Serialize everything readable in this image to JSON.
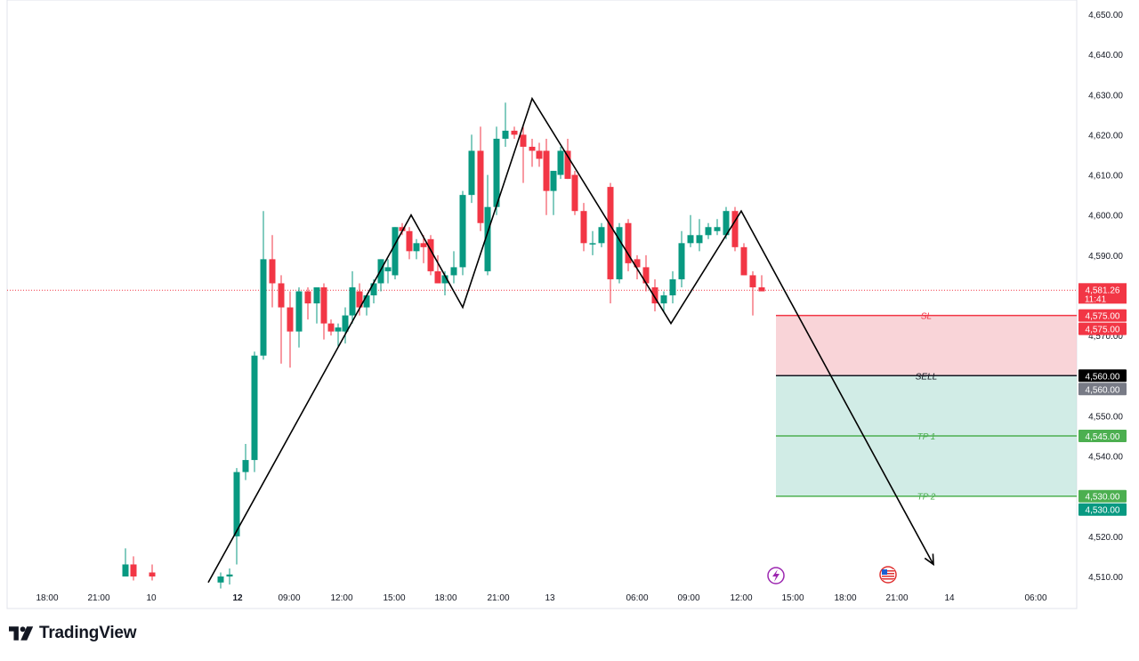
{
  "chart_data": {
    "type": "candlestick",
    "platform": "TradingView",
    "colors": {
      "up": "#089981",
      "down": "#F23645",
      "price_line": "#F23645",
      "stop_zone": "#F7C5CB",
      "target_zone": "#B9E2D8",
      "tp": "#4CAF50",
      "sell": "#000000"
    },
    "y_axis": {
      "range": [
        4508.0,
        4652.0
      ],
      "ticks": [
        "4,650.00",
        "4,640.00",
        "4,630.00",
        "4,620.00",
        "4,610.00",
        "4,600.00",
        "4,590.00",
        "4,580.00",
        "4,570.00",
        "4,560.00",
        "4,550.00",
        "4,540.00",
        "4,530.00",
        "4,520.00",
        "4,510.00"
      ],
      "tick_values": [
        4650,
        4640,
        4630,
        4620,
        4610,
        4600,
        4590,
        4580,
        4570,
        4560,
        4550,
        4540,
        4530,
        4520,
        4510
      ]
    },
    "x_axis": {
      "labels": [
        "18:00",
        "21:00",
        "10",
        "12",
        "09:00",
        "12:00",
        "15:00",
        "18:00",
        "21:00",
        "13",
        "06:00",
        "09:00",
        "12:00",
        "15:00",
        "18:00",
        "21:00",
        "14",
        "06:00"
      ],
      "bold": [
        false,
        false,
        false,
        true,
        false,
        false,
        false,
        false,
        false,
        false,
        false,
        false,
        false,
        false,
        false,
        false,
        false,
        false
      ]
    },
    "current_price": {
      "value": 4581.26,
      "label": "4,581.26",
      "countdown": "11:41"
    },
    "candles": [
      {
        "t": "10 03:00",
        "o": 4510.0,
        "h": 4517.0,
        "l": 4510.0,
        "c": 4513.0
      },
      {
        "t": "10 04:00",
        "o": 4513.0,
        "h": 4515.0,
        "l": 4509.0,
        "c": 4510.0
      },
      {
        "t": "10 06:00",
        "o": 4511.0,
        "h": 4513.0,
        "l": 4509.0,
        "c": 4510.0
      },
      {
        "t": "12 00:00",
        "o": 4508.5,
        "h": 4511.0,
        "l": 4507.0,
        "c": 4510.0
      },
      {
        "t": "12 01:00",
        "o": 4510.0,
        "h": 4512.0,
        "l": 4508.0,
        "c": 4510.5
      },
      {
        "t": "12 02:00",
        "o": 4520.0,
        "h": 4537.0,
        "l": 4513.0,
        "c": 4536.0
      },
      {
        "t": "12 03:00",
        "o": 4536.0,
        "h": 4543.0,
        "l": 4534.0,
        "c": 4539.0
      },
      {
        "t": "12 04:00",
        "o": 4539.0,
        "h": 4566.0,
        "l": 4536.0,
        "c": 4565.0
      },
      {
        "t": "12 05:00",
        "o": 4565.0,
        "h": 4601.0,
        "l": 4564.0,
        "c": 4589.0
      },
      {
        "t": "12 06:00",
        "o": 4589.0,
        "h": 4595.0,
        "l": 4577.0,
        "c": 4583.0
      },
      {
        "t": "12 07:00",
        "o": 4583.0,
        "h": 4585.0,
        "l": 4563.0,
        "c": 4577.0
      },
      {
        "t": "12 08:00",
        "o": 4577.0,
        "h": 4581.0,
        "l": 4562.0,
        "c": 4571.0
      },
      {
        "t": "12 09:00",
        "o": 4571.0,
        "h": 4582.0,
        "l": 4567.0,
        "c": 4581.0
      },
      {
        "t": "12 10:00",
        "o": 4581.0,
        "h": 4582.0,
        "l": 4574.0,
        "c": 4578.0
      },
      {
        "t": "12 11:00",
        "o": 4578.0,
        "h": 4582.0,
        "l": 4573.0,
        "c": 4582.0
      },
      {
        "t": "12 12:00",
        "o": 4582.0,
        "h": 4583.0,
        "l": 4569.0,
        "c": 4573.0
      },
      {
        "t": "12 13:00",
        "o": 4573.0,
        "h": 4574.0,
        "l": 4570.0,
        "c": 4571.0
      },
      {
        "t": "12 14:00",
        "o": 4571.0,
        "h": 4573.0,
        "l": 4567.0,
        "c": 4572.0
      },
      {
        "t": "12 15:00",
        "o": 4571.0,
        "h": 4577.0,
        "l": 4568.0,
        "c": 4575.0
      },
      {
        "t": "12 16:00",
        "o": 4575.0,
        "h": 4586.0,
        "l": 4573.0,
        "c": 4582.0
      },
      {
        "t": "12 17:00",
        "o": 4581.0,
        "h": 4583.0,
        "l": 4575.0,
        "c": 4577.0
      },
      {
        "t": "12 18:00",
        "o": 4577.0,
        "h": 4580.0,
        "l": 4575.0,
        "c": 4580.0
      },
      {
        "t": "12 19:00",
        "o": 4580.0,
        "h": 4584.0,
        "l": 4578.0,
        "c": 4583.0
      },
      {
        "t": "12 20:00",
        "o": 4583.0,
        "h": 4589.0,
        "l": 4581.0,
        "c": 4589.0
      },
      {
        "t": "12 21:00",
        "o": 4586.0,
        "h": 4589.0,
        "l": 4583.0,
        "c": 4587.0
      },
      {
        "t": "12 22:00",
        "o": 4585.0,
        "h": 4597.0,
        "l": 4584.0,
        "c": 4597.0
      },
      {
        "t": "12 23:00",
        "o": 4597.0,
        "h": 4598.0,
        "l": 4595.0,
        "c": 4596.0
      },
      {
        "t": "13 00:00",
        "o": 4596.0,
        "h": 4597.0,
        "l": 4589.0,
        "c": 4591.0
      },
      {
        "t": "13 01:00",
        "o": 4591.0,
        "h": 4594.0,
        "l": 4589.0,
        "c": 4593.0
      },
      {
        "t": "13 02:00",
        "o": 4593.0,
        "h": 4595.0,
        "l": 4588.0,
        "c": 4592.0
      },
      {
        "t": "13 03:00",
        "o": 4594.0,
        "h": 4595.0,
        "l": 4585.0,
        "c": 4586.0
      },
      {
        "t": "13 04:00",
        "o": 4586.0,
        "h": 4590.0,
        "l": 4583.0,
        "c": 4583.0
      },
      {
        "t": "13 05:00",
        "o": 4583.0,
        "h": 4586.0,
        "l": 4580.0,
        "c": 4585.0
      },
      {
        "t": "13 06:00",
        "o": 4585.0,
        "h": 4591.0,
        "l": 4583.0,
        "c": 4587.0
      },
      {
        "t": "13 07:00",
        "o": 4587.0,
        "h": 4606.0,
        "l": 4585.0,
        "c": 4605.0
      },
      {
        "t": "13 08:00",
        "o": 4605.0,
        "h": 4620.0,
        "l": 4603.0,
        "c": 4616.0
      },
      {
        "t": "13 09:00",
        "o": 4616.0,
        "h": 4622.0,
        "l": 4596.0,
        "c": 4598.0
      },
      {
        "t": "13 10:00",
        "o": 4586.0,
        "h": 4610.0,
        "l": 4585.0,
        "c": 4602.0
      },
      {
        "t": "13 11:00",
        "o": 4602.0,
        "h": 4622.0,
        "l": 4600.0,
        "c": 4619.0
      },
      {
        "t": "13 12:00",
        "o": 4619.0,
        "h": 4628.0,
        "l": 4617.0,
        "c": 4621.0
      },
      {
        "t": "13 13:00",
        "o": 4621.0,
        "h": 4622.0,
        "l": 4619.0,
        "c": 4620.0
      },
      {
        "t": "13 14:00",
        "o": 4620.0,
        "h": 4622.0,
        "l": 4608.0,
        "c": 4617.0
      },
      {
        "t": "13 15:00",
        "o": 4617.0,
        "h": 4619.0,
        "l": 4612.0,
        "c": 4616.0
      },
      {
        "t": "13 16:00",
        "o": 4616.0,
        "h": 4618.0,
        "l": 4612.0,
        "c": 4614.0
      },
      {
        "t": "13 17:00",
        "o": 4616.0,
        "h": 4619.0,
        "l": 4600.0,
        "c": 4606.0
      },
      {
        "t": "13 18:00",
        "o": 4606.0,
        "h": 4611.0,
        "l": 4600.0,
        "c": 4611.0
      },
      {
        "t": "13 19:00",
        "o": 4610.0,
        "h": 4617.0,
        "l": 4609.0,
        "c": 4616.0
      },
      {
        "t": "13 20:00",
        "o": 4616.0,
        "h": 4619.0,
        "l": 4609.0,
        "c": 4609.0
      },
      {
        "t": "13 21:00",
        "o": 4610.0,
        "h": 4611.0,
        "l": 4600.0,
        "c": 4601.0
      },
      {
        "t": "13 22:00",
        "o": 4601.0,
        "h": 4603.0,
        "l": 4591.0,
        "c": 4593.0
      },
      {
        "t": "13 23:00",
        "o": 4593.0,
        "h": 4596.0,
        "l": 4590.0,
        "c": 4593.0
      },
      {
        "t": "13 24:00",
        "o": 4593.0,
        "h": 4598.0,
        "l": 4592.0,
        "c": 4597.0
      },
      {
        "t": "13 01b",
        "o": 4607.0,
        "h": 4608.0,
        "l": 4578.0,
        "c": 4584.0
      },
      {
        "t": "13 02b",
        "o": 4584.0,
        "h": 4598.0,
        "l": 4583.0,
        "c": 4597.0
      },
      {
        "t": "13 03b",
        "o": 4598.0,
        "h": 4599.0,
        "l": 4586.0,
        "c": 4588.0
      },
      {
        "t": "13 04b",
        "o": 4589.0,
        "h": 4590.0,
        "l": 4584.0,
        "c": 4587.0
      },
      {
        "t": "13 05b",
        "o": 4587.0,
        "h": 4590.0,
        "l": 4581.0,
        "c": 4583.0
      },
      {
        "t": "13 06b",
        "o": 4582.0,
        "h": 4584.0,
        "l": 4576.0,
        "c": 4578.0
      },
      {
        "t": "13 07b",
        "o": 4578.0,
        "h": 4581.0,
        "l": 4576.0,
        "c": 4580.0
      },
      {
        "t": "13 08b",
        "o": 4580.0,
        "h": 4586.0,
        "l": 4578.0,
        "c": 4584.0
      },
      {
        "t": "13 09b",
        "o": 4584.0,
        "h": 4596.0,
        "l": 4582.0,
        "c": 4593.0
      },
      {
        "t": "13 10b",
        "o": 4593.0,
        "h": 4600.0,
        "l": 4592.0,
        "c": 4595.0
      },
      {
        "t": "13 11b",
        "o": 4593.0,
        "h": 4599.0,
        "l": 4591.0,
        "c": 4595.0
      },
      {
        "t": "13 12b",
        "o": 4595.0,
        "h": 4598.0,
        "l": 4594.0,
        "c": 4597.0
      },
      {
        "t": "13 13b",
        "o": 4596.0,
        "h": 4599.0,
        "l": 4595.0,
        "c": 4597.0
      },
      {
        "t": "13 14b",
        "o": 4595.0,
        "h": 4602.0,
        "l": 4594.0,
        "c": 4601.0
      },
      {
        "t": "13 15b",
        "o": 4601.0,
        "h": 4602.0,
        "l": 4591.0,
        "c": 4592.0
      },
      {
        "t": "13 16b",
        "o": 4592.0,
        "h": 4593.0,
        "l": 4585.0,
        "c": 4585.0
      },
      {
        "t": "13 17b",
        "o": 4585.0,
        "h": 4586.0,
        "l": 4575.0,
        "c": 4582.0
      },
      {
        "t": "13 18b",
        "o": 4582.0,
        "h": 4585.0,
        "l": 4581.0,
        "c": 4581.0
      }
    ],
    "zigzag": [
      [
        4508.0,
        4508.5
      ],
      [
        4600.0,
        4600.0
      ]
    ],
    "position": {
      "sl": {
        "label": "SL",
        "value": 4575.0,
        "price_label": "4,575.00"
      },
      "sell": {
        "label": "SELL",
        "value": 4560.0,
        "price_label": "4,560.00"
      },
      "tp1": {
        "label": "TP 1",
        "value": 4545.0,
        "price_label": "4,545.00"
      },
      "tp2": {
        "label": "TP 2",
        "value": 4530.0,
        "price_label": "4,530.00"
      }
    },
    "axis_tags": [
      {
        "text": "4,575.00",
        "value": 4575.0,
        "bg": "#F23645"
      },
      {
        "text": "4,560.00",
        "value": 4560.0,
        "bg": "#000000"
      },
      {
        "text": "4,560.00",
        "value": 4560.0,
        "bg": "#787B86"
      },
      {
        "text": "4,545.00",
        "value": 4545.0,
        "bg": "#4CAF50"
      },
      {
        "text": "4,530.00",
        "value": 4530.0,
        "bg": "#4CAF50"
      },
      {
        "text": "4,530.00",
        "value": 4530.0,
        "bg": "#089981"
      }
    ],
    "event_icons": [
      "lightning-icon",
      "us-flag-icon"
    ]
  },
  "brand": {
    "name": "TradingView"
  }
}
